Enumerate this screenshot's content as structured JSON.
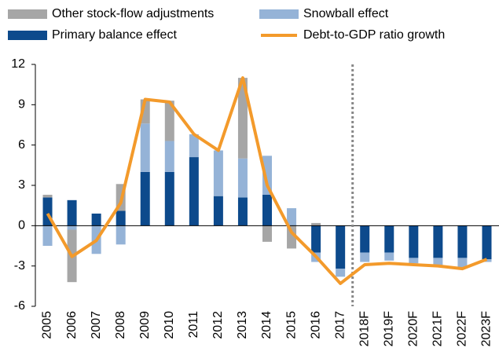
{
  "chart_data": {
    "type": "bar",
    "categories": [
      "2005",
      "2006",
      "2007",
      "2008",
      "2009",
      "2010",
      "2011",
      "2012",
      "2013",
      "2014",
      "2015",
      "2016",
      "2017",
      "2018F",
      "2019F",
      "2020F",
      "2021F",
      "2022F",
      "2023F"
    ],
    "series": [
      {
        "name": "Other stock-flow adjustments",
        "type": "bar",
        "color": "#a6a6a6",
        "values": [
          0.2,
          -3.9,
          0,
          2.0,
          1.8,
          3.0,
          0,
          0,
          6.0,
          -1.2,
          -1.7,
          0.2,
          0,
          0,
          0,
          0,
          0,
          0,
          0
        ]
      },
      {
        "name": "Snowball effect",
        "type": "bar",
        "color": "#95b3d7",
        "values": [
          -1.5,
          -0.3,
          -2.1,
          -1.4,
          3.6,
          2.3,
          1.7,
          3.4,
          2.9,
          2.9,
          1.3,
          -0.7,
          -0.6,
          -0.7,
          -0.6,
          -0.4,
          -0.6,
          -0.7,
          -0.2
        ]
      },
      {
        "name": "Primary balance effect",
        "type": "bar",
        "color": "#0d4a8c",
        "values": [
          2.1,
          1.9,
          0.9,
          1.1,
          4.0,
          4.0,
          5.1,
          2.2,
          2.1,
          2.3,
          0,
          -2.0,
          -3.2,
          -2.0,
          -2.0,
          -2.4,
          -2.4,
          -2.4,
          -2.5
        ]
      },
      {
        "name": "Debt-to-GDP ratio growth",
        "type": "line",
        "color": "#f39a2b",
        "values": [
          0.9,
          -2.3,
          -1.1,
          1.7,
          9.4,
          9.2,
          6.8,
          5.6,
          11.0,
          3.0,
          -0.5,
          -2.3,
          -4.3,
          -2.9,
          -2.8,
          -2.9,
          -3.0,
          -3.2,
          -2.5
        ]
      }
    ],
    "ylim": [
      -6,
      12
    ],
    "yticks": [
      -6,
      -3,
      0,
      3,
      6,
      9,
      12
    ]
  }
}
